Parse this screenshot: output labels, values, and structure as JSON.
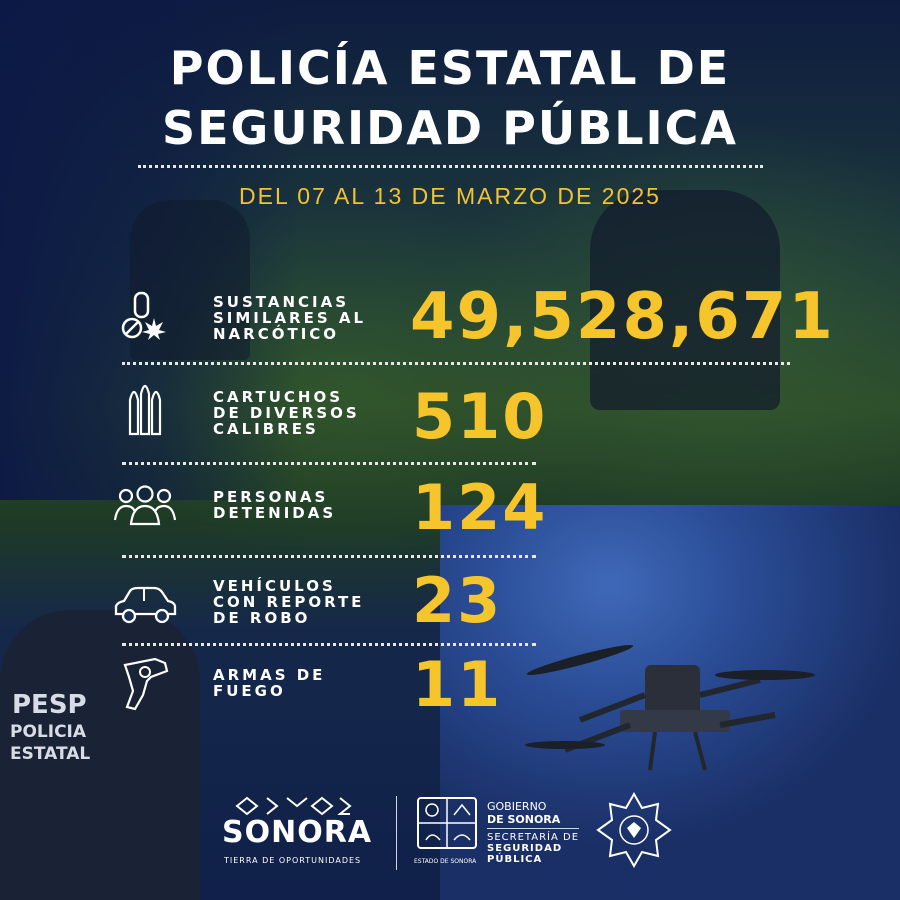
{
  "header": {
    "title_line1": "POLICÍA ESTATAL DE",
    "title_line2": "SEGURIDAD PÚBLICA",
    "date": "DEL 07 AL 13 DE MARZO DE 2025"
  },
  "stats": [
    {
      "label": "SUSTANCIAS\nSIMILARES AL\nNARCÓTICO",
      "value": "49,528,671",
      "icon": "pill-leaf-icon"
    },
    {
      "label": "CARTUCHOS\nDE DIVERSOS\nCALIBRES",
      "value": "510",
      "icon": "bullets-icon"
    },
    {
      "label": "PERSONAS\nDETENIDAS",
      "value": "124",
      "icon": "people-icon"
    },
    {
      "label": "VEHÍCULOS\nCON REPORTE\nDE ROBO",
      "value": "23",
      "icon": "car-icon"
    },
    {
      "label": "ARMAS DE\nFUEGO",
      "value": "11",
      "icon": "revolver-icon"
    }
  ],
  "background": {
    "officer_back_text_1": "PESP",
    "officer_back_text_2": "POLICIA",
    "officer_back_text_3": "ESTATAL"
  },
  "footer": {
    "sonora": "SONORA",
    "sonora_tagline": "TIERRA DE OPORTUNIDADES",
    "gobierno_1": "GOBIERNO",
    "gobierno_2": "DE SONORA",
    "secretaria_1": "SECRETARÍA DE",
    "secretaria_2": "SEGURIDAD",
    "secretaria_3": "PÚBLICA",
    "estado": "ESTADO DE SONORA"
  },
  "colors": {
    "accent": "#f6c52b",
    "text": "#ffffff",
    "navy": "#0e1c40"
  }
}
